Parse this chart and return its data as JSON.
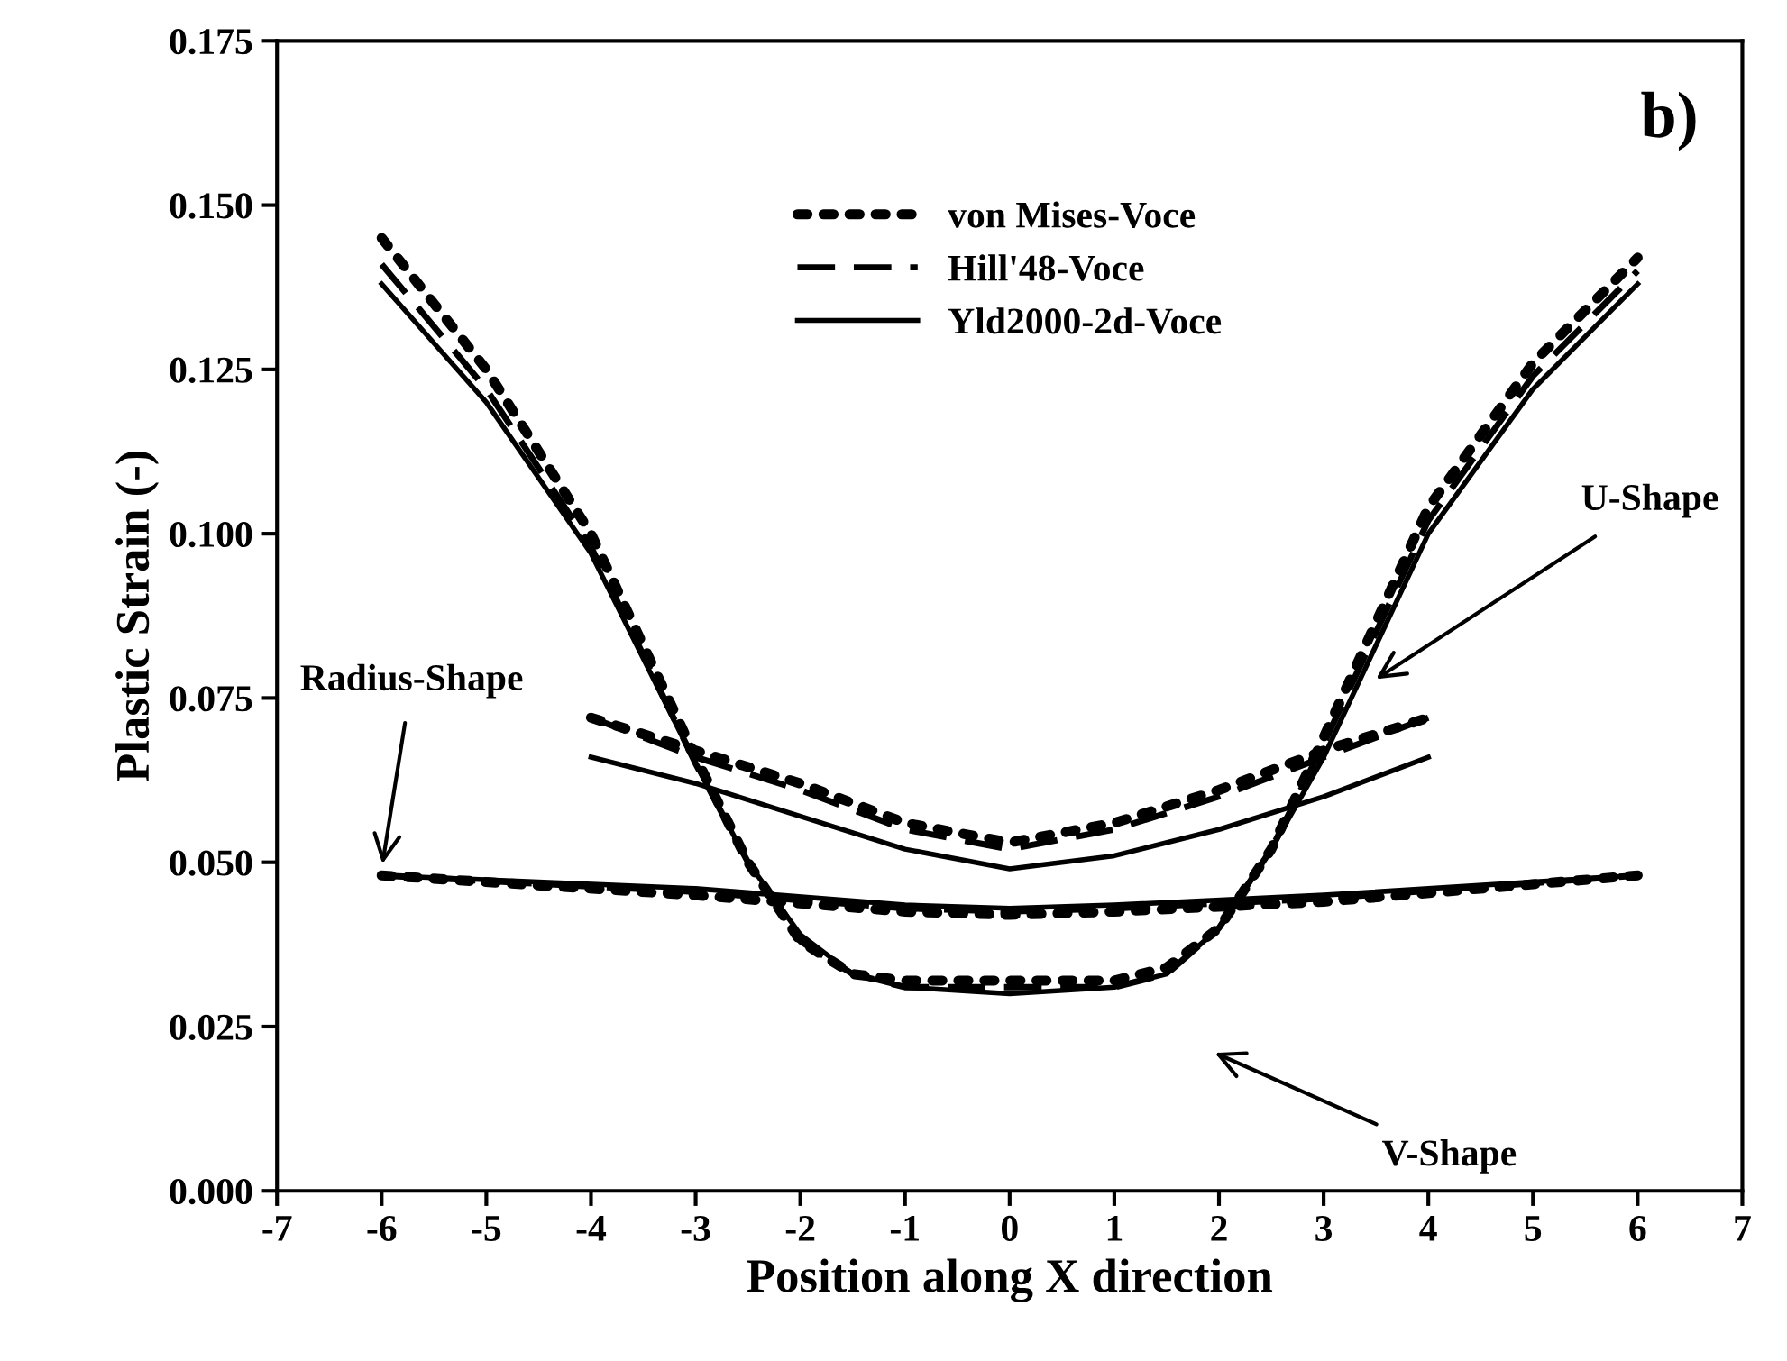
{
  "chart_data": {
    "type": "line",
    "xlabel": "Position along X direction",
    "ylabel": "Plastic Strain (-)",
    "xlim": [
      -7,
      7
    ],
    "xticks": [
      -7,
      -6,
      -5,
      -4,
      -3,
      -2,
      -1,
      0,
      1,
      2,
      3,
      4,
      5,
      6,
      7
    ],
    "ylim": [
      0,
      0.175
    ],
    "yticks": [
      {
        "value": 0,
        "label": "0.000"
      },
      {
        "value": 0.025,
        "label": "0.025"
      },
      {
        "value": 0.05,
        "label": "0.050"
      },
      {
        "value": 0.075,
        "label": "0.075"
      },
      {
        "value": 0.1,
        "label": "0.100"
      },
      {
        "value": 0.125,
        "label": "0.125"
      },
      {
        "value": 0.15,
        "label": "0.150"
      },
      {
        "value": 0.175,
        "label": "0.175"
      }
    ],
    "grid": false,
    "legend": "top",
    "marker": "none",
    "series": [
      {
        "name": "von Mises-Voce",
        "color": "#000000",
        "line_style": "dotted",
        "x": [
          -6,
          -5,
          -4,
          -3,
          -2.5,
          -2,
          -1.5,
          -1,
          0,
          1,
          1.5,
          2,
          2.5,
          3,
          4,
          5,
          6
        ],
        "values": [
          0.145,
          0.125,
          0.1,
          0.066,
          0.05,
          0.038,
          0.033,
          0.032,
          0.032,
          0.032,
          0.034,
          0.04,
          0.052,
          0.069,
          0.104,
          0.126,
          0.142
        ]
      },
      {
        "name": "Hill'48-Voce",
        "color": "#000000",
        "line_style": "dashed",
        "x": [
          -6,
          -5,
          -4,
          -3,
          -2.5,
          -2,
          -1.5,
          -1,
          0,
          1,
          1.5,
          2,
          2.5,
          3,
          4,
          5,
          6
        ],
        "values": [
          0.141,
          0.122,
          0.098,
          0.065,
          0.05,
          0.038,
          0.033,
          0.031,
          0.031,
          0.031,
          0.033,
          0.04,
          0.052,
          0.068,
          0.102,
          0.124,
          0.14
        ]
      },
      {
        "name": "Yld2000-2d-Voce",
        "color": "#000000",
        "line_style": "solid",
        "x": [
          -6,
          -5,
          -4,
          -3,
          -2.5,
          -2,
          -1.5,
          -1,
          0,
          1,
          1.5,
          2,
          2.5,
          3,
          4,
          5,
          6
        ],
        "values": [
          0.138,
          0.12,
          0.097,
          0.065,
          0.05,
          0.039,
          0.033,
          0.031,
          0.03,
          0.031,
          0.033,
          0.04,
          0.052,
          0.066,
          0.1,
          0.122,
          0.138
        ]
      },
      {
        "color": "#000000",
        "line_style": "dotted",
        "x": [
          -4,
          -3,
          -2,
          -1,
          0,
          1,
          2,
          3,
          4
        ],
        "values": [
          0.072,
          0.067,
          0.062,
          0.056,
          0.053,
          0.056,
          0.061,
          0.067,
          0.072
        ]
      },
      {
        "color": "#000000",
        "line_style": "dashed",
        "x": [
          -4,
          -3,
          -2,
          -1,
          0,
          1,
          2,
          3,
          4
        ],
        "values": [
          0.072,
          0.066,
          0.061,
          0.055,
          0.052,
          0.055,
          0.06,
          0.066,
          0.072
        ]
      },
      {
        "color": "#000000",
        "line_style": "solid",
        "x": [
          -4,
          -3,
          -2,
          -1,
          0,
          1,
          2,
          3,
          4
        ],
        "values": [
          0.066,
          0.062,
          0.057,
          0.052,
          0.049,
          0.051,
          0.055,
          0.06,
          0.066
        ]
      },
      {
        "color": "#000000",
        "line_style": "dotted",
        "x": [
          -6,
          -3,
          -1,
          0,
          1,
          3,
          6
        ],
        "values": [
          0.048,
          0.045,
          0.0425,
          0.042,
          0.0425,
          0.044,
          0.048
        ]
      },
      {
        "color": "#000000",
        "line_style": "dashed",
        "x": [
          -6,
          -3,
          -1,
          0,
          1,
          3,
          6
        ],
        "values": [
          0.048,
          0.0455,
          0.043,
          0.0425,
          0.043,
          0.0445,
          0.048
        ]
      },
      {
        "color": "#000000",
        "line_style": "solid",
        "x": [
          -6,
          -3,
          -1,
          0,
          1,
          3,
          6
        ],
        "values": [
          0.048,
          0.046,
          0.0435,
          0.043,
          0.0435,
          0.045,
          0.048
        ]
      }
    ],
    "annotations": [
      {
        "text": "Radius-Shape",
        "x": -6,
        "y": 0.049
      },
      "U-Shape",
      "V-Shape",
      "b)"
    ]
  }
}
